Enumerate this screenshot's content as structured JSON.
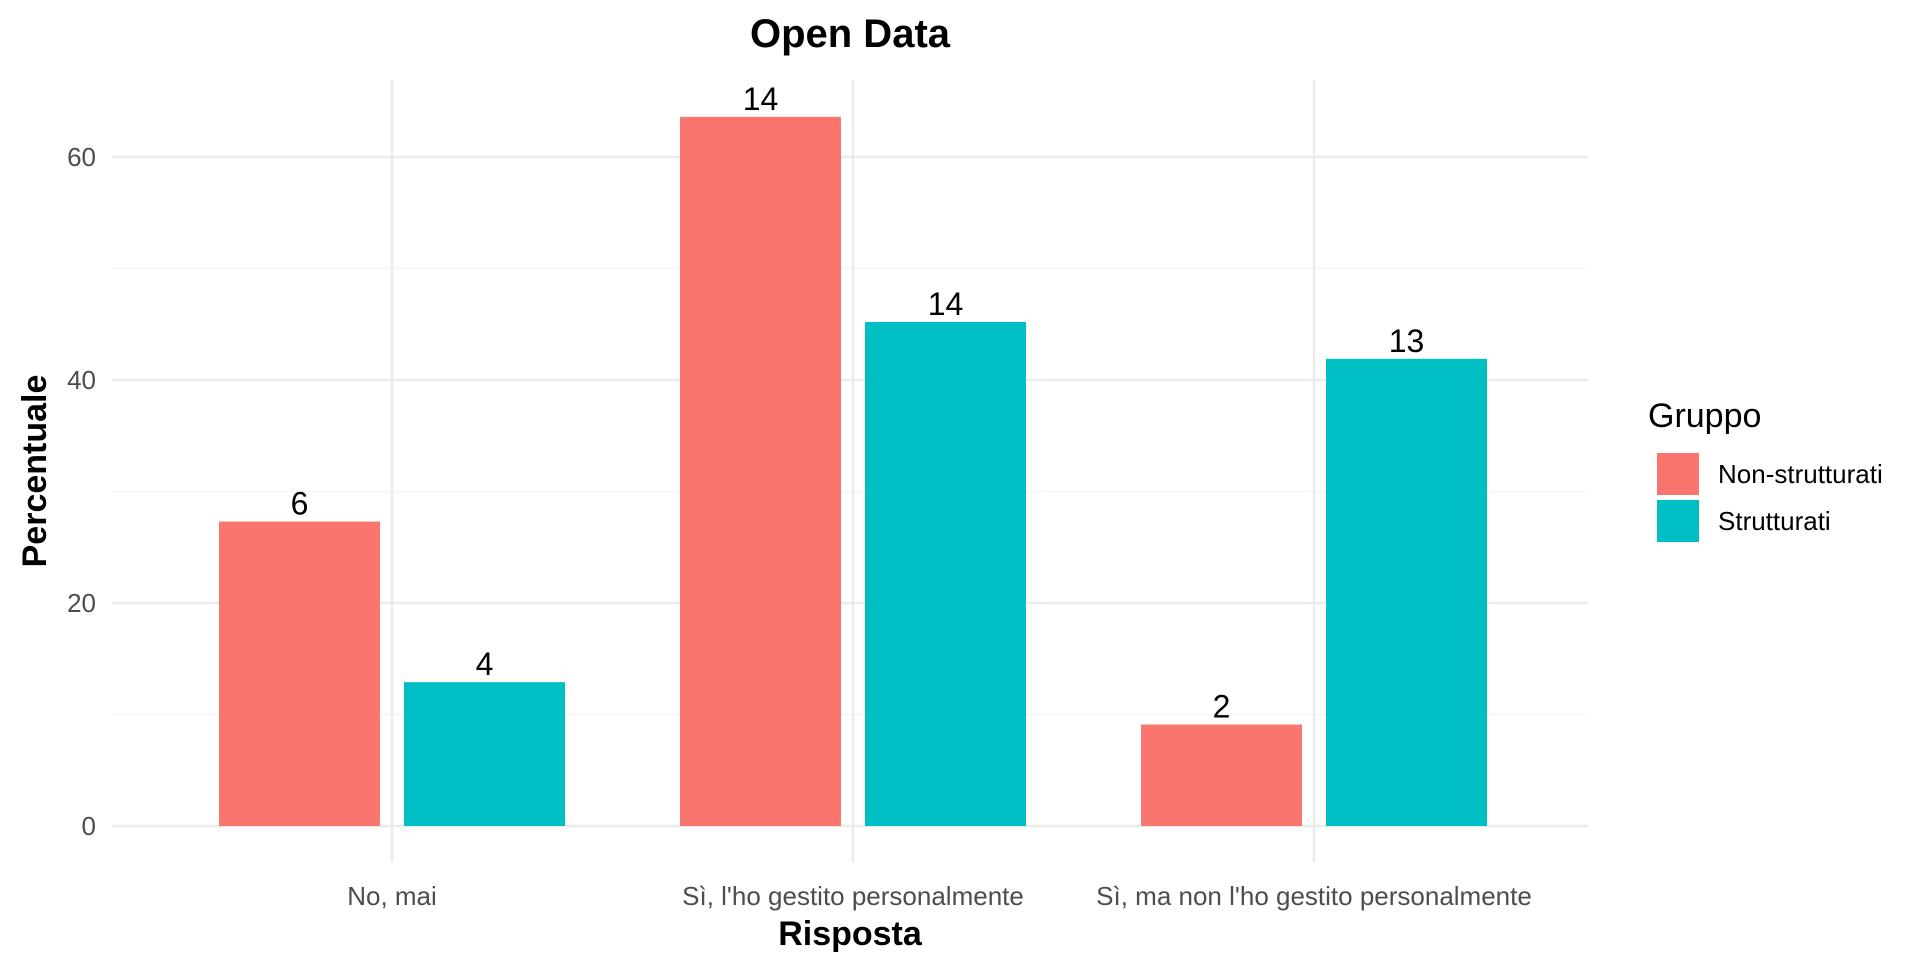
{
  "chart_data": {
    "type": "bar",
    "title": "Open Data",
    "xlabel": "Risposta",
    "ylabel": "Percentuale",
    "categories": [
      "No, mai",
      "Sì, l'ho gestito personalmente",
      "Sì, ma non l'ho gestito personalmente"
    ],
    "series": [
      {
        "name": "Non-strutturati",
        "color": "#F8766D",
        "values": [
          27.3,
          63.6,
          9.1
        ],
        "labels": [
          "6",
          "14",
          "2"
        ]
      },
      {
        "name": "Strutturati",
        "color": "#00BFC4",
        "values": [
          12.9,
          45.2,
          41.9
        ],
        "labels": [
          "4",
          "14",
          "13"
        ]
      }
    ],
    "ylim": [
      0,
      66
    ],
    "yticks": [
      0,
      20,
      40,
      60
    ],
    "grid": true,
    "legend": {
      "title": "Gruppo",
      "position": "right"
    }
  }
}
